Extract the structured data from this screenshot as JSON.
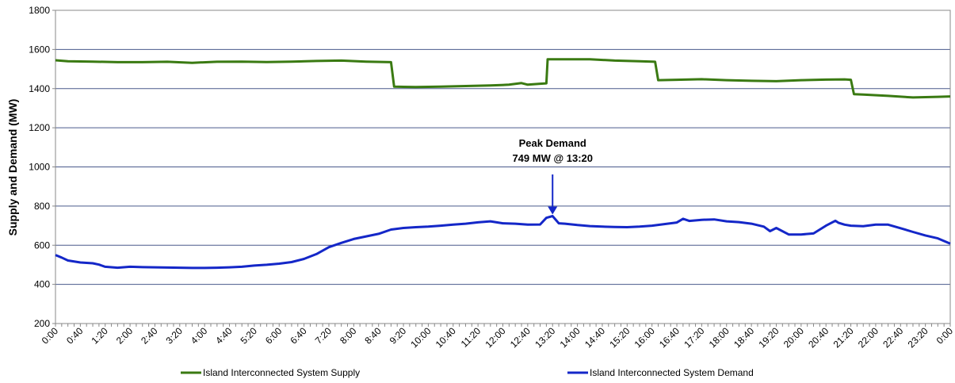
{
  "chart_data": {
    "type": "line",
    "title": "",
    "xlabel": "",
    "ylabel": "Supply and Demand (MW)",
    "ylim": [
      200,
      1800
    ],
    "yticks": [
      "200",
      "400",
      "600",
      "800",
      "1000",
      "1200",
      "1400",
      "1600",
      "1800"
    ],
    "grid": "horizontal",
    "legend_position": "bottom",
    "x_range_minutes": [
      0,
      1440
    ],
    "xtick_labels": [
      "0:00",
      "0:40",
      "1:20",
      "2:00",
      "2:40",
      "3:20",
      "4:00",
      "4:40",
      "5:20",
      "6:00",
      "6:40",
      "7:20",
      "8:00",
      "8:40",
      "9:20",
      "10:00",
      "10:40",
      "11:20",
      "12:00",
      "12:40",
      "13:20",
      "14:00",
      "14:40",
      "15:20",
      "16:00",
      "16:40",
      "17:20",
      "18:00",
      "18:40",
      "19:20",
      "20:00",
      "20:40",
      "21:20",
      "22:00",
      "22:40",
      "23:20",
      "0:00"
    ],
    "series": [
      {
        "name": "Island Interconnected System Supply",
        "color": "#3a7a12",
        "points": [
          [
            "0:00",
            1545
          ],
          [
            "0:20",
            1540
          ],
          [
            "1:00",
            1538
          ],
          [
            "1:40",
            1535
          ],
          [
            "2:20",
            1535
          ],
          [
            "3:00",
            1537
          ],
          [
            "3:40",
            1532
          ],
          [
            "4:20",
            1537
          ],
          [
            "5:00",
            1538
          ],
          [
            "5:40",
            1536
          ],
          [
            "6:20",
            1538
          ],
          [
            "7:00",
            1541
          ],
          [
            "7:40",
            1543
          ],
          [
            "8:20",
            1538
          ],
          [
            "9:00",
            1535
          ],
          [
            "9:05",
            1410
          ],
          [
            "9:40",
            1408
          ],
          [
            "10:20",
            1410
          ],
          [
            "11:00",
            1413
          ],
          [
            "11:40",
            1416
          ],
          [
            "12:10",
            1420
          ],
          [
            "12:30",
            1428
          ],
          [
            "12:40",
            1420
          ],
          [
            "13:00",
            1425
          ],
          [
            "13:10",
            1427
          ],
          [
            "13:12",
            1550
          ],
          [
            "13:40",
            1550
          ],
          [
            "14:20",
            1550
          ],
          [
            "15:00",
            1543
          ],
          [
            "15:40",
            1540
          ],
          [
            "16:05",
            1537
          ],
          [
            "16:10",
            1443
          ],
          [
            "16:40",
            1445
          ],
          [
            "17:20",
            1448
          ],
          [
            "18:00",
            1443
          ],
          [
            "18:40",
            1440
          ],
          [
            "19:20",
            1438
          ],
          [
            "20:00",
            1443
          ],
          [
            "20:40",
            1446
          ],
          [
            "21:10",
            1447
          ],
          [
            "21:20",
            1445
          ],
          [
            "21:25",
            1372
          ],
          [
            "21:40",
            1370
          ],
          [
            "22:20",
            1363
          ],
          [
            "23:00",
            1355
          ],
          [
            "23:40",
            1358
          ],
          [
            "24:00",
            1360
          ]
        ]
      },
      {
        "name": "Island Interconnected System Demand",
        "color": "#1427c8",
        "points": [
          [
            "0:00",
            550
          ],
          [
            "0:10",
            537
          ],
          [
            "0:20",
            522
          ],
          [
            "0:40",
            512
          ],
          [
            "1:00",
            508
          ],
          [
            "1:10",
            501
          ],
          [
            "1:20",
            490
          ],
          [
            "1:40",
            485
          ],
          [
            "2:00",
            490
          ],
          [
            "2:20",
            488
          ],
          [
            "2:40",
            487
          ],
          [
            "3:00",
            486
          ],
          [
            "3:20",
            485
          ],
          [
            "3:40",
            484
          ],
          [
            "4:00",
            484
          ],
          [
            "4:20",
            485
          ],
          [
            "4:40",
            487
          ],
          [
            "5:00",
            490
          ],
          [
            "5:20",
            496
          ],
          [
            "5:40",
            500
          ],
          [
            "6:00",
            506
          ],
          [
            "6:20",
            514
          ],
          [
            "6:40",
            530
          ],
          [
            "7:00",
            555
          ],
          [
            "7:20",
            590
          ],
          [
            "7:40",
            612
          ],
          [
            "8:00",
            632
          ],
          [
            "8:20",
            645
          ],
          [
            "8:40",
            658
          ],
          [
            "9:00",
            680
          ],
          [
            "9:20",
            688
          ],
          [
            "9:40",
            692
          ],
          [
            "10:00",
            695
          ],
          [
            "10:20",
            700
          ],
          [
            "10:40",
            705
          ],
          [
            "11:00",
            710
          ],
          [
            "11:20",
            717
          ],
          [
            "11:40",
            722
          ],
          [
            "12:00",
            712
          ],
          [
            "12:20",
            710
          ],
          [
            "12:40",
            705
          ],
          [
            "13:00",
            706
          ],
          [
            "13:10",
            740
          ],
          [
            "13:20",
            749
          ],
          [
            "13:30",
            712
          ],
          [
            "13:40",
            710
          ],
          [
            "14:00",
            703
          ],
          [
            "14:20",
            698
          ],
          [
            "14:40",
            695
          ],
          [
            "15:00",
            693
          ],
          [
            "15:20",
            692
          ],
          [
            "15:40",
            695
          ],
          [
            "16:00",
            700
          ],
          [
            "16:20",
            708
          ],
          [
            "16:40",
            716
          ],
          [
            "16:50",
            735
          ],
          [
            "17:00",
            724
          ],
          [
            "17:20",
            730
          ],
          [
            "17:40",
            732
          ],
          [
            "18:00",
            722
          ],
          [
            "18:20",
            718
          ],
          [
            "18:40",
            710
          ],
          [
            "19:00",
            695
          ],
          [
            "19:10",
            672
          ],
          [
            "19:20",
            688
          ],
          [
            "19:40",
            655
          ],
          [
            "20:00",
            655
          ],
          [
            "20:20",
            660
          ],
          [
            "20:40",
            700
          ],
          [
            "20:55",
            725
          ],
          [
            "21:00",
            715
          ],
          [
            "21:10",
            705
          ],
          [
            "21:20",
            700
          ],
          [
            "21:40",
            697
          ],
          [
            "22:00",
            705
          ],
          [
            "22:20",
            705
          ],
          [
            "22:40",
            687
          ],
          [
            "23:00",
            668
          ],
          [
            "23:20",
            650
          ],
          [
            "23:40",
            635
          ],
          [
            "24:00",
            608
          ]
        ]
      }
    ],
    "annotations": [
      {
        "line1": "Peak Demand",
        "line2": "749 MW @ 13:20",
        "x": "13:20",
        "y": 749
      }
    ]
  }
}
